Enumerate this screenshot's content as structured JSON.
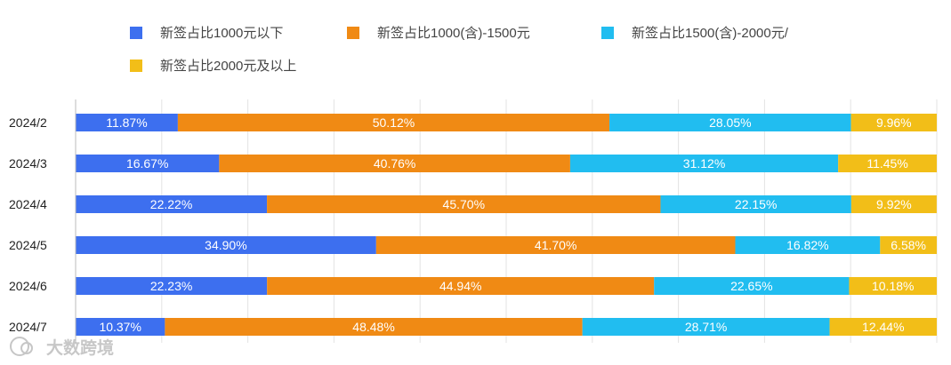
{
  "chart_data": {
    "type": "bar",
    "orientation": "horizontal",
    "stacked": true,
    "normalized_percent": true,
    "categories": [
      "2024/2",
      "2024/3",
      "2024/4",
      "2024/5",
      "2024/6",
      "2024/7"
    ],
    "series": [
      {
        "name": "新签占比1000元以下",
        "color": "#3d6fef",
        "values": [
          11.87,
          16.67,
          22.22,
          34.9,
          22.23,
          10.37
        ],
        "labels": [
          "11.87%",
          "16.67%",
          "22.22%",
          "34.90%",
          "22.23%",
          "10.37%"
        ]
      },
      {
        "name": "新签占比1000(含)-1500元",
        "color": "#f08a14",
        "values": [
          50.12,
          40.76,
          45.7,
          41.7,
          44.94,
          48.48
        ],
        "labels": [
          "50.12%",
          "40.76%",
          "45.70%",
          "41.70%",
          "44.94%",
          "48.48%"
        ]
      },
      {
        "name": "新签占比1500(含)-2000元/",
        "color": "#21bdf0",
        "values": [
          28.05,
          31.12,
          22.15,
          16.82,
          22.65,
          28.71
        ],
        "labels": [
          "28.05%",
          "31.12%",
          "22.15%",
          "16.82%",
          "22.65%",
          "28.71%"
        ]
      },
      {
        "name": "新签占比2000元及以上",
        "color": "#f2be18",
        "values": [
          9.96,
          11.45,
          9.92,
          6.58,
          10.18,
          12.44
        ],
        "labels": [
          "9.96%",
          "11.45%",
          "9.92%",
          "6.58%",
          "10.18%",
          "12.44%"
        ]
      }
    ],
    "xlim": [
      0,
      100
    ],
    "grid": true,
    "legend_position": "top"
  },
  "watermark": {
    "text": "大数跨境"
  }
}
